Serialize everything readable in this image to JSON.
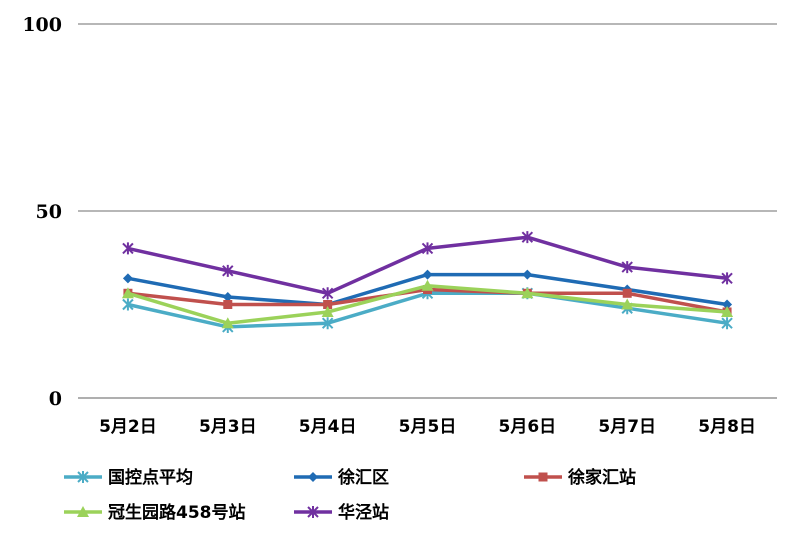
{
  "chart_data": {
    "type": "line",
    "title": "",
    "xlabel": "",
    "ylabel": "",
    "categories": [
      "5月2日",
      "5月3日",
      "5月4日",
      "5月5日",
      "5月6日",
      "5月7日",
      "5月8日"
    ],
    "ylim": [
      0,
      100
    ],
    "yticks": [
      "0",
      "50",
      "100"
    ],
    "grid": true,
    "legend_position": "bottom",
    "series": [
      {
        "name": "国控点平均",
        "color": "#4BACC6",
        "marker": "star",
        "values": [
          25,
          19,
          20,
          28,
          28,
          24,
          20
        ]
      },
      {
        "name": "徐汇区",
        "color": "#1F6BB4",
        "marker": "diamond",
        "values": [
          32,
          27,
          25,
          33,
          33,
          29,
          25
        ]
      },
      {
        "name": "徐家汇站",
        "color": "#C0504D",
        "marker": "square",
        "values": [
          28,
          25,
          25,
          29,
          28,
          28,
          23
        ]
      },
      {
        "name": "冠生园路458号站",
        "color": "#9BD25A",
        "marker": "triangle",
        "values": [
          28,
          20,
          23,
          30,
          28,
          25,
          23
        ]
      },
      {
        "name": "华泾站",
        "color": "#7030A0",
        "marker": "star",
        "values": [
          40,
          34,
          28,
          40,
          43,
          35,
          32
        ]
      }
    ]
  }
}
